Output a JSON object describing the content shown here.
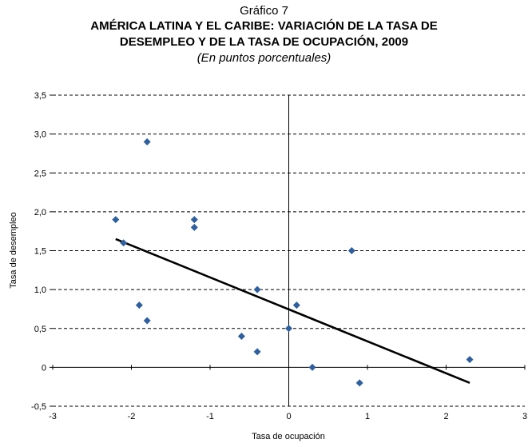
{
  "header": {
    "label": "Gráfico 7",
    "title_line1": "AMÉRICA LATINA Y EL CARIBE: VARIACIÓN DE LA TASA DE",
    "title_line2": "DESEMPLEO Y DE LA TASA DE OCUPACIÓN, 2009",
    "subtitle": "(En puntos porcentuales)"
  },
  "chart_data": {
    "type": "scatter",
    "title": "AMÉRICA LATINA Y EL CARIBE: VARIACIÓN DE LA TASA DE DESEMPLEO Y DE LA TASA DE OCUPACIÓN, 2009",
    "subtitle": "(En puntos porcentuales)",
    "xlabel": "Tasa de ocupación",
    "ylabel": "Tasa de desempleo",
    "xlim": [
      -3,
      3
    ],
    "ylim": [
      -0.5,
      3.5
    ],
    "x_ticks": [
      -3,
      -2,
      -1,
      0,
      1,
      2,
      3
    ],
    "x_tick_labels": [
      "-3",
      "-2",
      "-1",
      "0",
      "1",
      "2",
      "3"
    ],
    "y_ticks": [
      -0.5,
      0,
      0.5,
      1.0,
      1.5,
      2.0,
      2.5,
      3.0,
      3.5
    ],
    "y_tick_labels": [
      "-0,5",
      "0",
      "0,5",
      "1,0",
      "1,5",
      "2,0",
      "2,5",
      "3,0",
      "3,5"
    ],
    "grid": "horizontal dashed",
    "marker_color": "#2e5f9e",
    "trend_color": "#000000",
    "points": [
      {
        "x": -2.2,
        "y": 1.9
      },
      {
        "x": -2.1,
        "y": 1.6
      },
      {
        "x": -1.9,
        "y": 0.8
      },
      {
        "x": -1.8,
        "y": 2.9
      },
      {
        "x": -1.8,
        "y": 0.6
      },
      {
        "x": -1.2,
        "y": 1.9
      },
      {
        "x": -1.2,
        "y": 1.8
      },
      {
        "x": -0.6,
        "y": 0.4
      },
      {
        "x": -0.4,
        "y": 1.0
      },
      {
        "x": -0.4,
        "y": 0.2
      },
      {
        "x": 0.0,
        "y": 0.5
      },
      {
        "x": 0.1,
        "y": 0.8
      },
      {
        "x": 0.3,
        "y": 0.0
      },
      {
        "x": 0.8,
        "y": 1.5
      },
      {
        "x": 0.9,
        "y": -0.2
      },
      {
        "x": 2.3,
        "y": 0.1
      }
    ],
    "trendline": {
      "x": [
        -2.2,
        2.3
      ],
      "y": [
        1.65,
        -0.2
      ]
    }
  }
}
